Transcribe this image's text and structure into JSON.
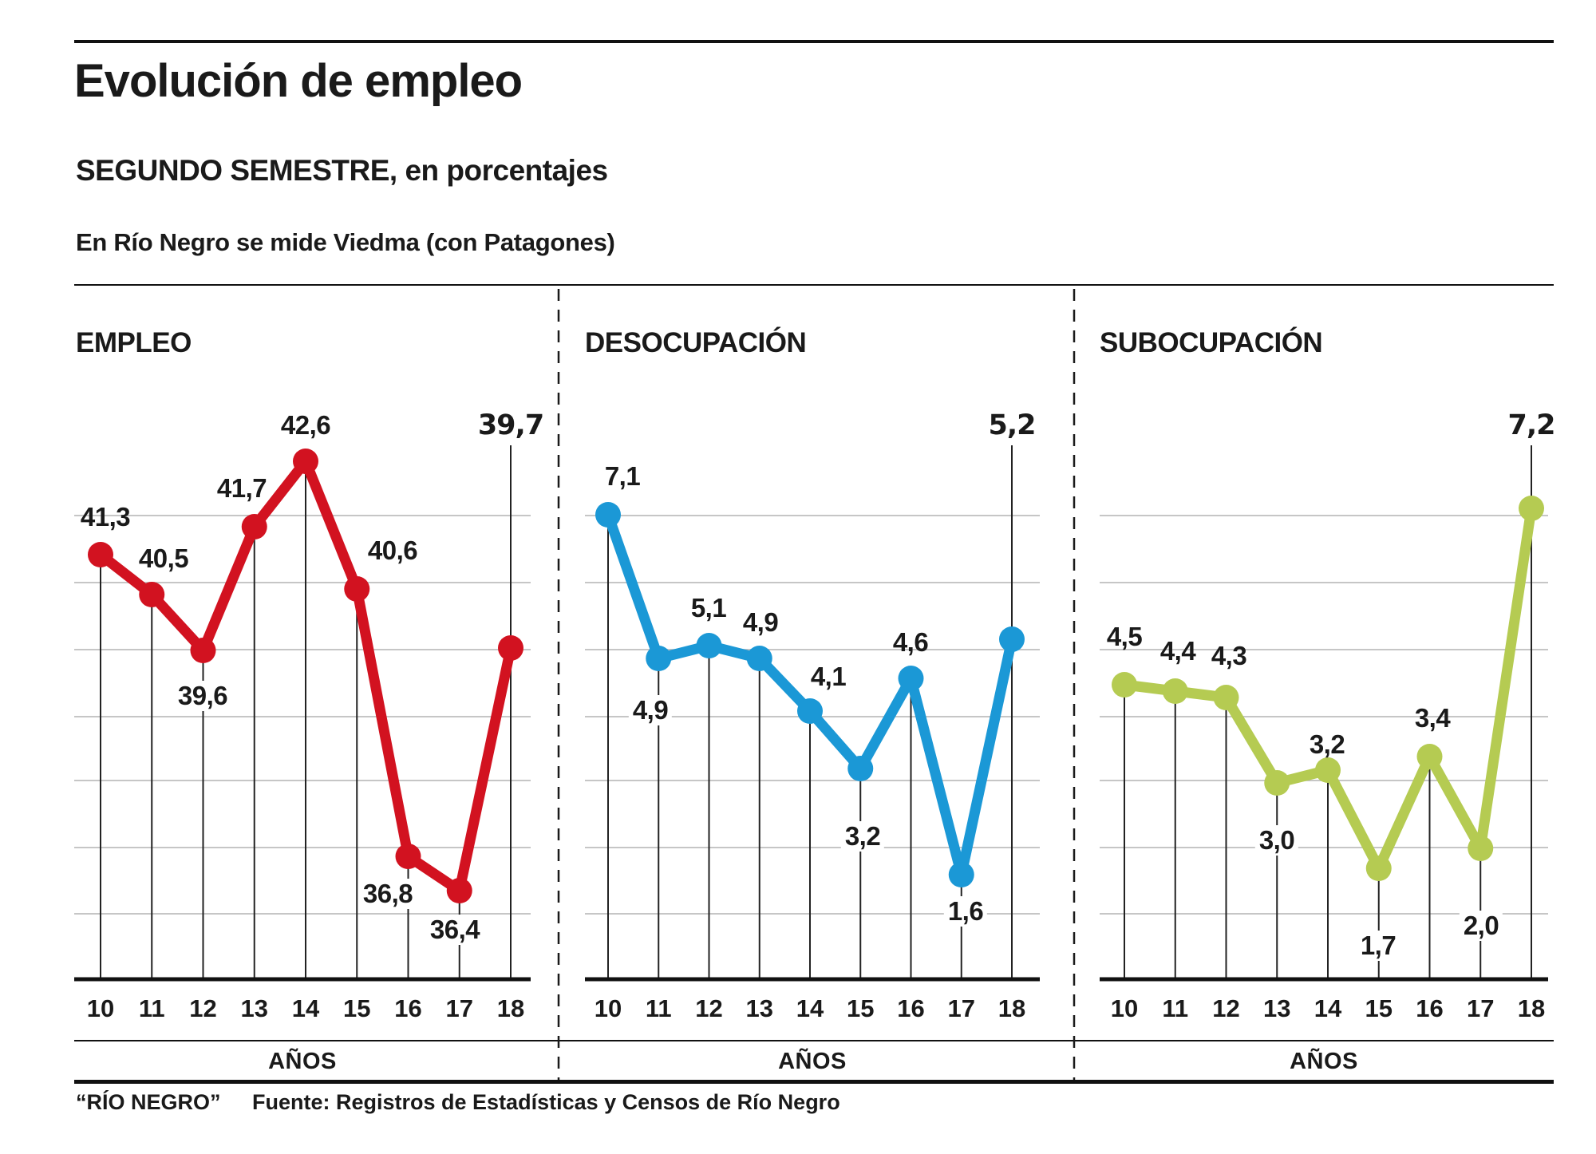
{
  "header": {
    "title": "Evolución de empleo",
    "subtitle": "SEGUNDO SEMESTRE, en porcentajes",
    "note": "En Río Negro se mide Viedma (con Patagones)"
  },
  "axis": {
    "label": "AÑOS",
    "years": [
      "10",
      "11",
      "12",
      "13",
      "14",
      "15",
      "16",
      "17",
      "18"
    ]
  },
  "footer": {
    "credit": "“RÍO NEGRO”",
    "source": "Fuente: Registros de Estadísticas y Censos de Río Negro"
  },
  "colors": {
    "empleo": "#d21220",
    "desocupacion": "#1b98d6",
    "subocupacion": "#b5cb52",
    "text": "#1a1a1a",
    "grid": "#b3b3b3",
    "rule": "#111111"
  },
  "chart_data": [
    {
      "type": "line",
      "title": "EMPLEO",
      "categories": [
        "10",
        "11",
        "12",
        "13",
        "14",
        "15",
        "16",
        "17",
        "18"
      ],
      "values": [
        41.3,
        40.5,
        39.6,
        41.7,
        42.6,
        40.6,
        36.8,
        36.4,
        39.7
      ],
      "point_labels": [
        "41,3",
        "40,5",
        "39,6",
        "41,7",
        "42,6",
        "40,6",
        "36,8",
        "36,4",
        "39,7"
      ],
      "emphasis_last": true,
      "xlabel": "AÑOS",
      "ylabel": "",
      "ylim": [
        34,
        44
      ],
      "grid": "horizontal",
      "legend": "none",
      "color": "#d21220"
    },
    {
      "type": "line",
      "title": "DESOCUPACIÓN",
      "categories": [
        "10",
        "11",
        "12",
        "13",
        "14",
        "15",
        "16",
        "17",
        "18"
      ],
      "values": [
        7.1,
        4.9,
        5.1,
        4.9,
        4.1,
        3.2,
        4.6,
        1.6,
        5.2
      ],
      "point_labels": [
        "7,1",
        "4,9",
        "5,1",
        "4,9",
        "4,1",
        "3,2",
        "4,6",
        "1,6",
        "5,2"
      ],
      "emphasis_last": true,
      "xlabel": "AÑOS",
      "ylabel": "",
      "ylim": [
        0,
        8
      ],
      "grid": "horizontal",
      "legend": "none",
      "color": "#1b98d6"
    },
    {
      "type": "line",
      "title": "SUBOCUPACIÓN",
      "categories": [
        "10",
        "11",
        "12",
        "13",
        "14",
        "15",
        "16",
        "17",
        "18"
      ],
      "values": [
        4.5,
        4.4,
        4.3,
        3.0,
        3.2,
        1.7,
        3.4,
        2.0,
        7.2
      ],
      "point_labels": [
        "4,5",
        "4,4",
        "4,3",
        "3,0",
        "3,2",
        "1,7",
        "3,4",
        "2,0",
        "7,2"
      ],
      "emphasis_last": true,
      "xlabel": "AÑOS",
      "ylabel": "",
      "ylim": [
        0,
        8
      ],
      "grid": "horizontal",
      "legend": "none",
      "color": "#b5cb52"
    }
  ]
}
